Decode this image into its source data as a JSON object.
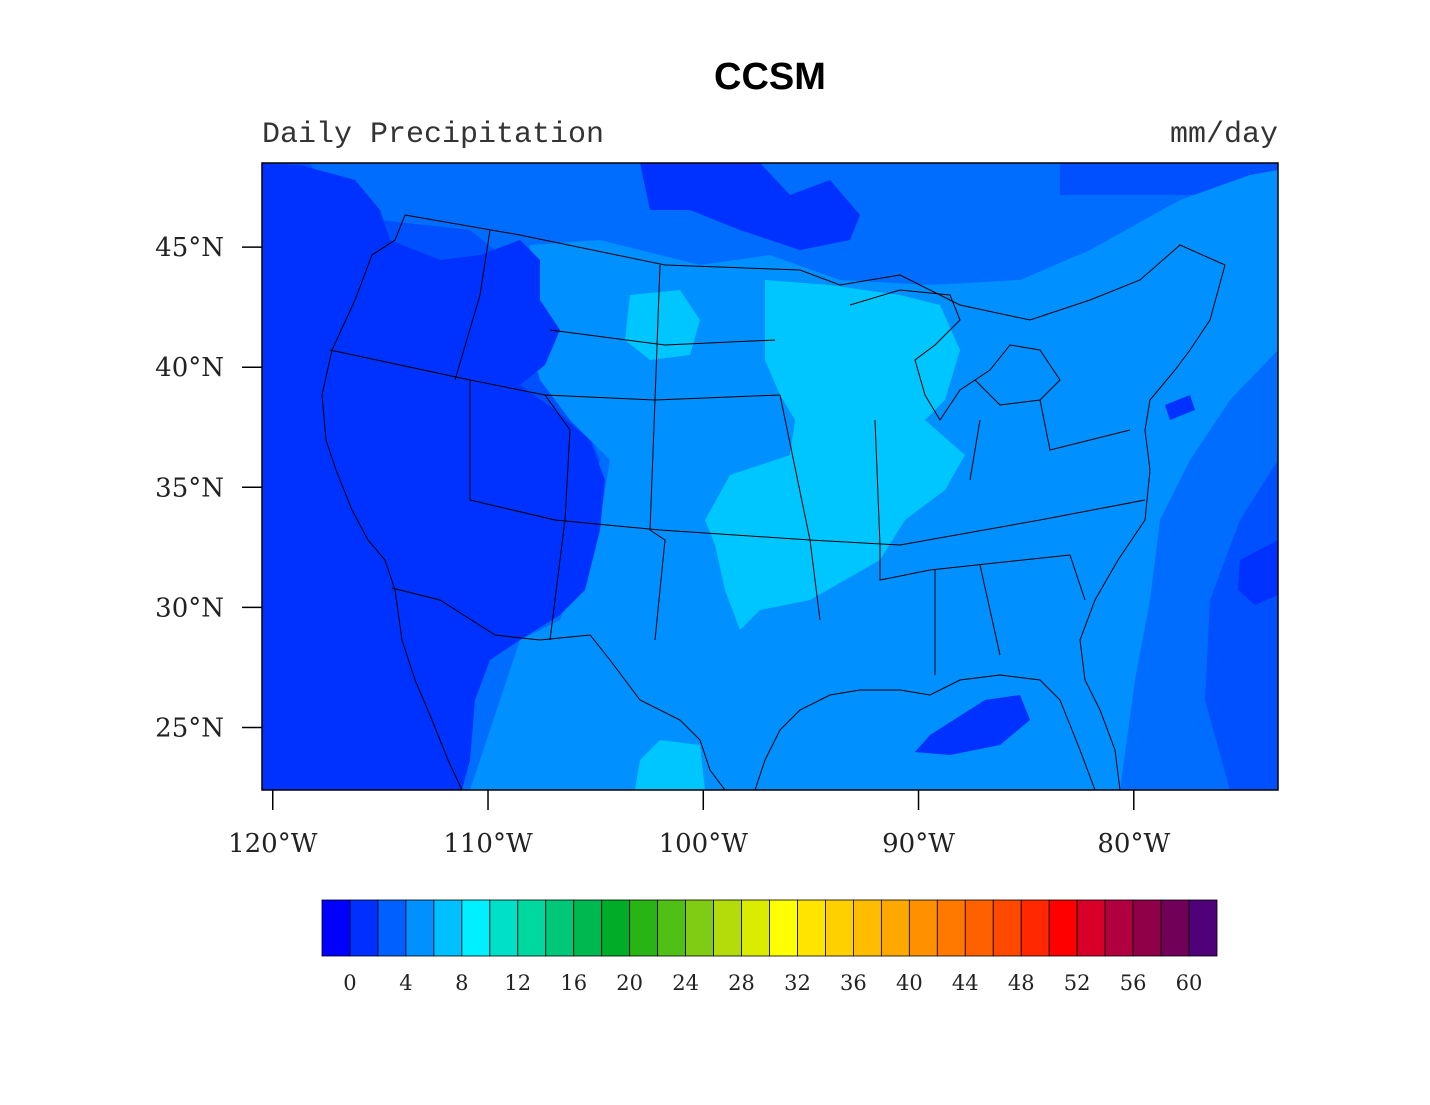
{
  "title": "CCSM",
  "left_string": "Daily Precipitation",
  "right_string": "mm/day",
  "map": {
    "projection": "latitude-longitude",
    "lon_range": [
      -120.5,
      -73.3
    ],
    "lat_range": [
      22.4,
      48.5
    ],
    "lat_ticks": [
      {
        "value": 45,
        "label": "45°N"
      },
      {
        "value": 40,
        "label": "40°N"
      },
      {
        "value": 35,
        "label": "35°N"
      },
      {
        "value": 30,
        "label": "30°N"
      },
      {
        "value": 25,
        "label": "25°N"
      }
    ],
    "lon_ticks": [
      {
        "value": -120,
        "label": "120°W"
      },
      {
        "value": -110,
        "label": "110°W"
      },
      {
        "value": -100,
        "label": "100°W"
      },
      {
        "value": -90,
        "label": "90°W"
      },
      {
        "value": -80,
        "label": "80°W"
      }
    ],
    "background_color": "#0050ff",
    "precip_fields": [
      {
        "level": "2-4",
        "color": "#006dff"
      },
      {
        "level": "4-6",
        "color": "#0090ff"
      },
      {
        "level": "6-8",
        "color": "#00c6ff"
      },
      {
        "level": "0-2",
        "color": "#0032ff"
      }
    ]
  },
  "colorbar": {
    "colors": [
      "#0000ff",
      "#0030ff",
      "#0060ff",
      "#0090ff",
      "#00c0ff",
      "#00f0ff",
      "#00e0c8",
      "#00d8a0",
      "#00c878",
      "#00b850",
      "#00ac28",
      "#28b414",
      "#50c014",
      "#80cc14",
      "#b4dc0a",
      "#dcec00",
      "#ffff00",
      "#ffe400",
      "#ffd000",
      "#ffbc00",
      "#ffa800",
      "#ff9000",
      "#ff7800",
      "#ff6000",
      "#ff4800",
      "#ff2800",
      "#ff0000",
      "#d80028",
      "#b00040",
      "#900048",
      "#700058",
      "#500078"
    ],
    "labels": [
      "0",
      "4",
      "8",
      "12",
      "16",
      "20",
      "24",
      "28",
      "32",
      "36",
      "40",
      "44",
      "48",
      "52",
      "56",
      "60"
    ]
  }
}
